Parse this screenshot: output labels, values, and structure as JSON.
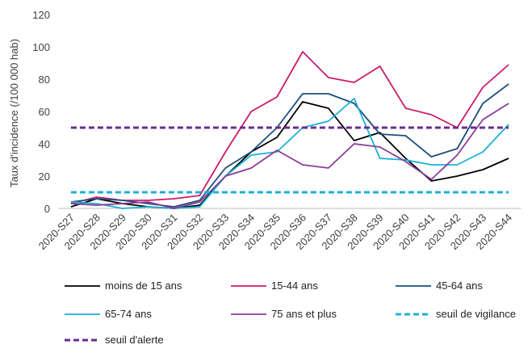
{
  "chart_data": {
    "type": "line",
    "title": "",
    "xlabel": "",
    "ylabel": "Taux d'incidence (/100 000 hab)",
    "ylim": [
      0,
      120
    ],
    "yticks": [
      0,
      20,
      40,
      60,
      80,
      100,
      120
    ],
    "grid": false,
    "legend_position": "bottom",
    "categories": [
      "2020-S27",
      "2020-S28",
      "2020-S29",
      "2020-S30",
      "2020-S31",
      "2020-S32",
      "2020-S33",
      "2020-S34",
      "2020-S35",
      "2020-S36",
      "2020-S37",
      "2020-S38",
      "2020-S39",
      "2020-S40",
      "2020-S41",
      "2020-S42",
      "2020-S43",
      "2020-S44"
    ],
    "series": [
      {
        "name": "moins de 15 ans",
        "color": "#000000",
        "dash": "solid",
        "values": [
          1,
          6,
          3,
          1,
          0,
          2,
          20,
          35,
          44,
          66,
          62,
          42,
          47,
          31,
          17,
          20,
          24,
          31
        ]
      },
      {
        "name": "15-44 ans",
        "color": "#cc1c6a",
        "dash": "solid",
        "values": [
          3,
          7,
          5,
          5,
          6,
          8,
          35,
          60,
          69,
          97,
          81,
          78,
          88,
          62,
          58,
          50,
          75,
          89
        ]
      },
      {
        "name": "45-64 ans",
        "color": "#1f4e79",
        "dash": "solid",
        "values": [
          4,
          6,
          5,
          3,
          1,
          5,
          25,
          35,
          50,
          71,
          71,
          65,
          46,
          45,
          32,
          37,
          65,
          77
        ]
      },
      {
        "name": "65-74 ans",
        "color": "#1cb0d4",
        "dash": "solid",
        "values": [
          4,
          3,
          0,
          1,
          0,
          1,
          20,
          33,
          35,
          50,
          54,
          68,
          31,
          30,
          27,
          27,
          35,
          52
        ]
      },
      {
        "name": "75 ans et plus",
        "color": "#8a3b98",
        "dash": "solid",
        "values": [
          3,
          2,
          3,
          4,
          0,
          4,
          20,
          25,
          36,
          27,
          25,
          40,
          38,
          29,
          18,
          33,
          55,
          65
        ]
      },
      {
        "name": "seuil de vigilance",
        "color": "#1cb0d4",
        "dash": "dashed",
        "values": [
          10,
          10,
          10,
          10,
          10,
          10,
          10,
          10,
          10,
          10,
          10,
          10,
          10,
          10,
          10,
          10,
          10,
          10
        ]
      },
      {
        "name": "seuil d'alerte",
        "color": "#6a2c8c",
        "dash": "dashed",
        "values": [
          50,
          50,
          50,
          50,
          50,
          50,
          50,
          50,
          50,
          50,
          50,
          50,
          50,
          50,
          50,
          50,
          50,
          50
        ]
      }
    ]
  }
}
